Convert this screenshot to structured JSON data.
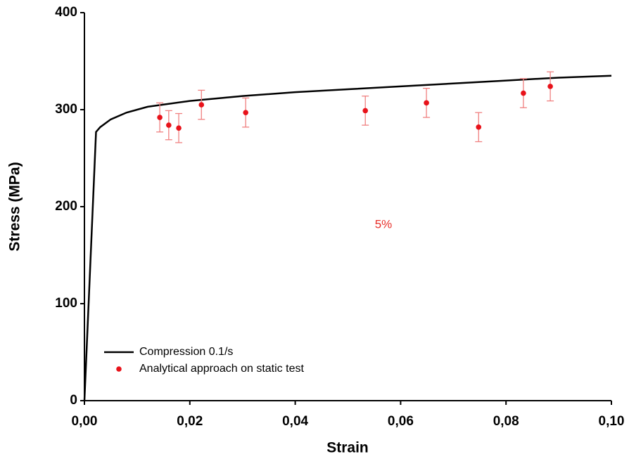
{
  "chart_data": {
    "type": "line",
    "xlabel": "Strain",
    "ylabel": "Stress (MPa)",
    "annotation": "5%",
    "annotation_color": "#e8302a",
    "legend": "lower left",
    "xlim": [
      0,
      0.1
    ],
    "ylim": [
      0,
      400
    ],
    "xticks": [
      {
        "value": 0,
        "label": "0,00"
      },
      {
        "value": 0.02,
        "label": "0,02"
      },
      {
        "value": 0.04,
        "label": "0,04"
      },
      {
        "value": 0.06,
        "label": "0,06"
      },
      {
        "value": 0.08,
        "label": "0,08"
      },
      {
        "value": 0.1,
        "label": "0,10"
      }
    ],
    "yticks": [
      0,
      100,
      200,
      300,
      400
    ],
    "series": [
      {
        "name": "Compression 0.1/s",
        "type": "line",
        "color": "#000000",
        "x": [
          0,
          0.0022,
          0.003,
          0.005,
          0.008,
          0.012,
          0.02,
          0.03,
          0.04,
          0.05,
          0.06,
          0.07,
          0.08,
          0.09,
          0.1
        ],
        "values": [
          0,
          277,
          282,
          290,
          297,
          303,
          309,
          314,
          318,
          321,
          324,
          327,
          330,
          333,
          335
        ]
      },
      {
        "name": "Analytical approach on static test",
        "type": "scatter",
        "color": "#e8121a",
        "error_color": "#f08080",
        "x": [
          0.0143,
          0.016,
          0.0179,
          0.0222,
          0.0306,
          0.0533,
          0.0649,
          0.0748,
          0.0833,
          0.0884
        ],
        "values": [
          292,
          284,
          281,
          305,
          297,
          299,
          307,
          282,
          317,
          324
        ],
        "errors": [
          15,
          15,
          15,
          15,
          15,
          15,
          15,
          15,
          15,
          15
        ]
      }
    ]
  }
}
